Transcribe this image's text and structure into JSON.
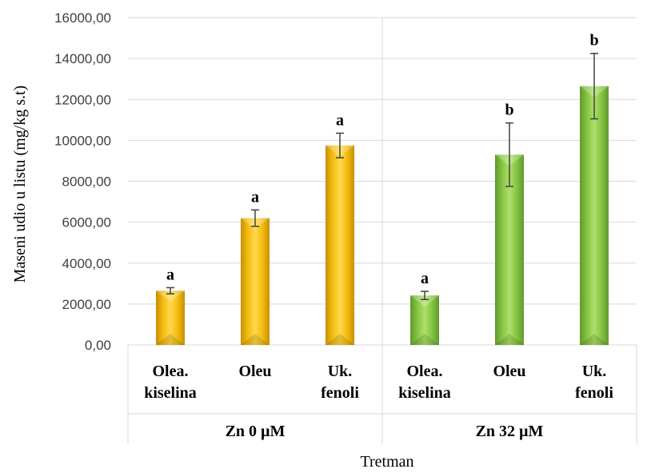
{
  "chart_data": {
    "type": "bar",
    "ylabel": "Maseni udio u listu (mg/kg s.t)",
    "xlabel": "Tretman",
    "ylim": [
      0,
      16000
    ],
    "yticks": [
      "0,00",
      "2000,00",
      "4000,00",
      "6000,00",
      "8000,00",
      "10000,00",
      "12000,00",
      "14000,00",
      "16000,00"
    ],
    "grid": true,
    "groups": [
      {
        "name": "Zn 0 µM",
        "color": "#f5c000",
        "bars": [
          {
            "category": [
              "Olea.",
              "kiselina"
            ],
            "value": 2650,
            "error": 150,
            "sig": "a"
          },
          {
            "category": [
              "Oleu"
            ],
            "value": 6200,
            "error": 400,
            "sig": "a"
          },
          {
            "category": [
              "Uk.",
              "fenoli"
            ],
            "value": 9750,
            "error": 600,
            "sig": "a"
          }
        ]
      },
      {
        "name": "Zn 32 µM",
        "color": "#8fce3e",
        "bars": [
          {
            "category": [
              "Olea.",
              "kiselina"
            ],
            "value": 2420,
            "error": 200,
            "sig": "a"
          },
          {
            "category": [
              "Oleu"
            ],
            "value": 9300,
            "error": 1550,
            "sig": "b"
          },
          {
            "category": [
              "Uk.",
              "fenoli"
            ],
            "value": 12650,
            "error": 1600,
            "sig": "b"
          }
        ]
      }
    ]
  }
}
